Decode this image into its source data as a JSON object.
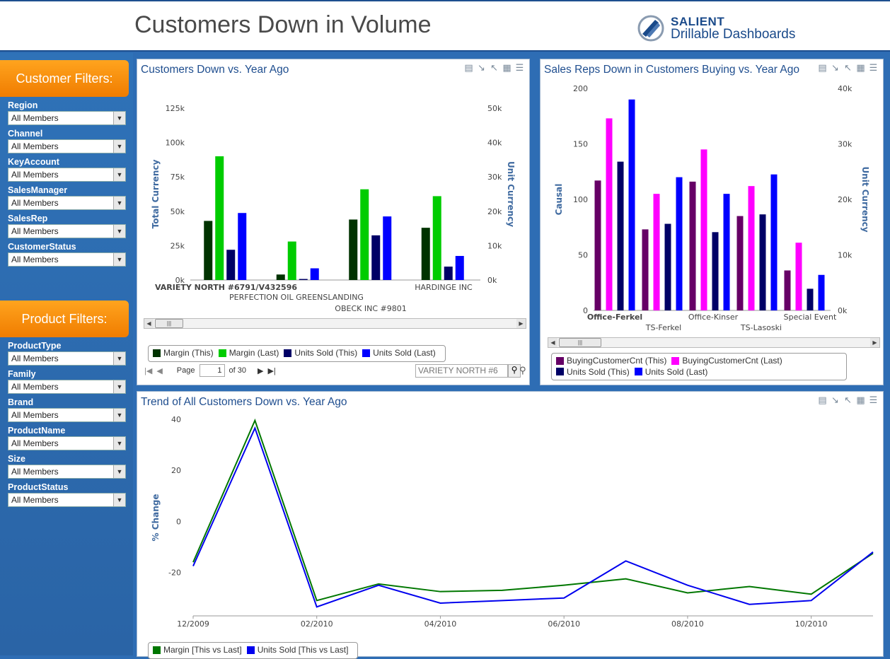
{
  "header": {
    "title": "Customers Down in Volume",
    "brand_name": "SALIENT",
    "brand_sub": "Drillable Dashboards"
  },
  "sidebar": {
    "customer_filters": {
      "title": "Customer Filters:",
      "filters": [
        {
          "label": "Region",
          "value": "All Members"
        },
        {
          "label": "Channel",
          "value": "All Members"
        },
        {
          "label": "KeyAccount",
          "value": "All Members"
        },
        {
          "label": "SalesManager",
          "value": "All Members"
        },
        {
          "label": "SalesRep",
          "value": "All Members"
        },
        {
          "label": "CustomerStatus",
          "value": "All Members"
        }
      ]
    },
    "product_filters": {
      "title": "Product Filters:",
      "filters": [
        {
          "label": "ProductType",
          "value": "All Members"
        },
        {
          "label": "Family",
          "value": "All Members"
        },
        {
          "label": "Brand",
          "value": "All Members"
        },
        {
          "label": "ProductName",
          "value": "All Members"
        },
        {
          "label": "Size",
          "value": "All Members"
        },
        {
          "label": "ProductStatus",
          "value": "All Members"
        }
      ]
    }
  },
  "panel1": {
    "title": "Customers Down vs. Year Ago",
    "pager": {
      "page_label": "Page",
      "page": "1",
      "of": "of 30"
    },
    "search_value": "VARIETY NORTH #6"
  },
  "panel2": {
    "title": "Sales Reps Down in Customers Buying vs. Year Ago"
  },
  "panel3": {
    "title": "Trend of All Customers Down vs. Year Ago"
  },
  "chart_data": [
    {
      "type": "bar",
      "title": "Customers Down vs. Year Ago",
      "categories": [
        "VARIETY NORTH #6791/V432596",
        "PERFECTION OIL GREENSLANDING",
        "OBECK INC #9801",
        "HARDINGE INC"
      ],
      "ylabel": "Total Currency",
      "y2label": "Unit Currency",
      "ylim": [
        0,
        125000
      ],
      "y2lim": [
        0,
        50000
      ],
      "yticks": [
        "0k",
        "25k",
        "50k",
        "75k",
        "100k",
        "125k"
      ],
      "y2ticks": [
        "0k",
        "10k",
        "20k",
        "30k",
        "40k",
        "50k"
      ],
      "series": [
        {
          "name": "Margin (This)",
          "axis": "left",
          "color": "#003300",
          "values": [
            43000,
            4000,
            44000,
            38000
          ]
        },
        {
          "name": "Margin (Last)",
          "axis": "left",
          "color": "#00cc00",
          "values": [
            90000,
            28000,
            66000,
            61000
          ]
        },
        {
          "name": "Units Sold (This)",
          "axis": "right",
          "color": "#000066",
          "values": [
            8800,
            300,
            13000,
            3900
          ]
        },
        {
          "name": "Units Sold (Last)",
          "axis": "right",
          "color": "#0000ff",
          "values": [
            19500,
            3400,
            18500,
            7000
          ]
        }
      ]
    },
    {
      "type": "bar",
      "title": "Sales Reps Down in Customers Buying vs. Year Ago",
      "categories": [
        "Office-Ferkel",
        "TS-Ferkel",
        "Office-Kinser",
        "TS-Lasoski",
        "Special Event"
      ],
      "ylabel": "Causal",
      "y2label": "Unit Currency",
      "ylim": [
        0,
        200
      ],
      "y2lim": [
        0,
        40000
      ],
      "yticks": [
        "0",
        "50",
        "100",
        "150",
        "200"
      ],
      "y2ticks": [
        "0k",
        "10k",
        "20k",
        "30k",
        "40k"
      ],
      "series": [
        {
          "name": "BuyingCustomerCnt (This)",
          "axis": "left",
          "color": "#660066",
          "values": [
            117,
            73,
            116,
            85,
            36
          ]
        },
        {
          "name": "BuyingCustomerCnt (Last)",
          "axis": "left",
          "color": "#ff00ff",
          "values": [
            173,
            105,
            145,
            112,
            61
          ]
        },
        {
          "name": "Units Sold (This)",
          "axis": "right",
          "color": "#000066",
          "values": [
            26800,
            15600,
            14100,
            17300,
            3900
          ]
        },
        {
          "name": "Units Sold (Last)",
          "axis": "right",
          "color": "#0000ff",
          "values": [
            38000,
            24000,
            21000,
            24500,
            6400
          ]
        }
      ]
    },
    {
      "type": "line",
      "title": "Trend of All Customers Down vs. Year Ago",
      "ylabel": "% Change",
      "ylim": [
        -37,
        43
      ],
      "yticks": [
        "-20",
        "0",
        "20",
        "40"
      ],
      "xticks": [
        "12/2009",
        "02/2010",
        "04/2010",
        "06/2010",
        "08/2010",
        "10/2010"
      ],
      "x": [
        "12/2009",
        "01/2010",
        "02/2010",
        "03/2010",
        "04/2010",
        "05/2010",
        "06/2010",
        "07/2010",
        "08/2010",
        "09/2010",
        "10/2010",
        "11/2010"
      ],
      "series": [
        {
          "name": "Margin [This vs Last]",
          "color": "#007700",
          "values": [
            -16,
            39.5,
            -31,
            -24.5,
            -27.5,
            -27,
            -25,
            -22.5,
            -28,
            -25.5,
            -28.5,
            -12.5
          ]
        },
        {
          "name": "Units Sold [This vs Last]",
          "color": "#0000ee",
          "values": [
            -17.5,
            36.5,
            -33.5,
            -25,
            -32,
            -31,
            -30,
            -15.5,
            -25,
            -32.5,
            -31,
            -12
          ]
        }
      ]
    }
  ]
}
